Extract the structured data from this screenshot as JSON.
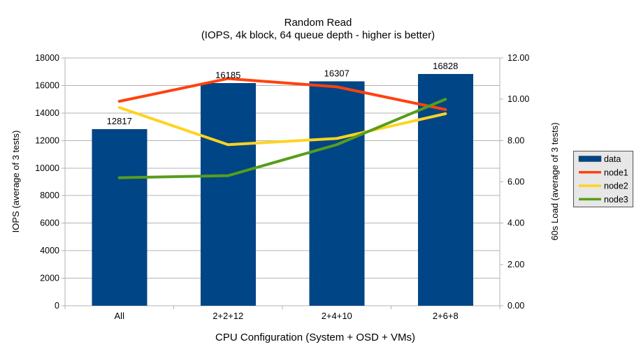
{
  "chart_data": {
    "type": "bar",
    "combo": "bars + overlay lines",
    "title": "Random Read",
    "subtitle": "(IOPS, 4k block, 64 queue depth - higher is better)",
    "xlabel": "CPU Configuration (System + OSD + VMs)",
    "ylabel_left": "IOPS (average of 3 tests)",
    "ylabel_right": "60s Load (average of 3 tests)",
    "categories": [
      "All",
      "2+2+12",
      "2+4+10",
      "2+6+8"
    ],
    "bar_series": {
      "name": "data",
      "axis": "left",
      "color": "#004586",
      "values": [
        12817,
        16185,
        16307,
        16828
      ]
    },
    "line_series": [
      {
        "name": "node1",
        "axis": "right",
        "color": "#FF420E",
        "values": [
          9.9,
          11.0,
          10.6,
          9.5
        ]
      },
      {
        "name": "node2",
        "axis": "right",
        "color": "#FFD320",
        "values": [
          9.6,
          7.8,
          8.1,
          9.3
        ]
      },
      {
        "name": "node3",
        "axis": "right",
        "color": "#579D1C",
        "values": [
          6.2,
          6.3,
          7.8,
          10.0
        ]
      }
    ],
    "bar_value_labels": [
      "12817",
      "16185",
      "16307",
      "16828"
    ],
    "ylim_left": [
      0,
      18000
    ],
    "ytick_step_left": 2000,
    "ylim_right": [
      0,
      12
    ],
    "ytick_step_right": 2,
    "right_tick_decimals": 2,
    "grid": true,
    "legend": {
      "position": "right",
      "items": [
        "data",
        "node1",
        "node2",
        "node3"
      ]
    }
  },
  "colors": {
    "background": "#ffffff",
    "grid": "#b3b3b3",
    "axis": "#b3b3b3",
    "text": "#000000",
    "legend_bg": "#e7e7e7",
    "legend_border": "#545454"
  }
}
